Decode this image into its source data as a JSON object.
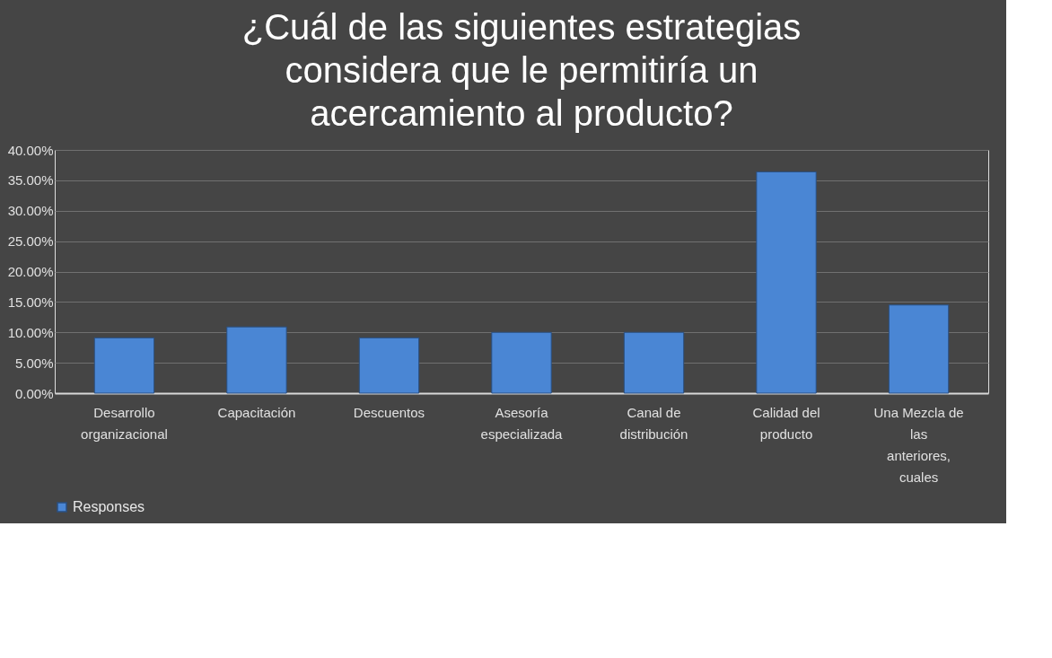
{
  "chart_data": {
    "type": "bar",
    "title": "¿Cuál de las siguientes estrategias considera que le permitiría un acercamiento al producto?",
    "categories": [
      "Desarrollo organizacional",
      "Capacitación",
      "Descuentos",
      "Asesoría especializada",
      "Canal de distribución",
      "Calidad del producto",
      "Una Mezcla de las anteriores, cuales"
    ],
    "series": [
      {
        "name": "Responses",
        "color": "#4a86d4",
        "values": [
          9.1,
          10.9,
          9.1,
          10.0,
          10.0,
          36.4,
          14.5
        ]
      }
    ],
    "ylim": [
      0,
      40
    ],
    "yticks": [
      {
        "value": 0,
        "label": "0.00%"
      },
      {
        "value": 5,
        "label": "5.00%"
      },
      {
        "value": 10,
        "label": "10.00%"
      },
      {
        "value": 15,
        "label": "15.00%"
      },
      {
        "value": 20,
        "label": "20.00%"
      },
      {
        "value": 25,
        "label": "25.00%"
      },
      {
        "value": 30,
        "label": "30.00%"
      },
      {
        "value": 35,
        "label": "35.00%"
      },
      {
        "value": 40,
        "label": "40.00%"
      }
    ],
    "grid": "y",
    "legend": "bottom"
  }
}
